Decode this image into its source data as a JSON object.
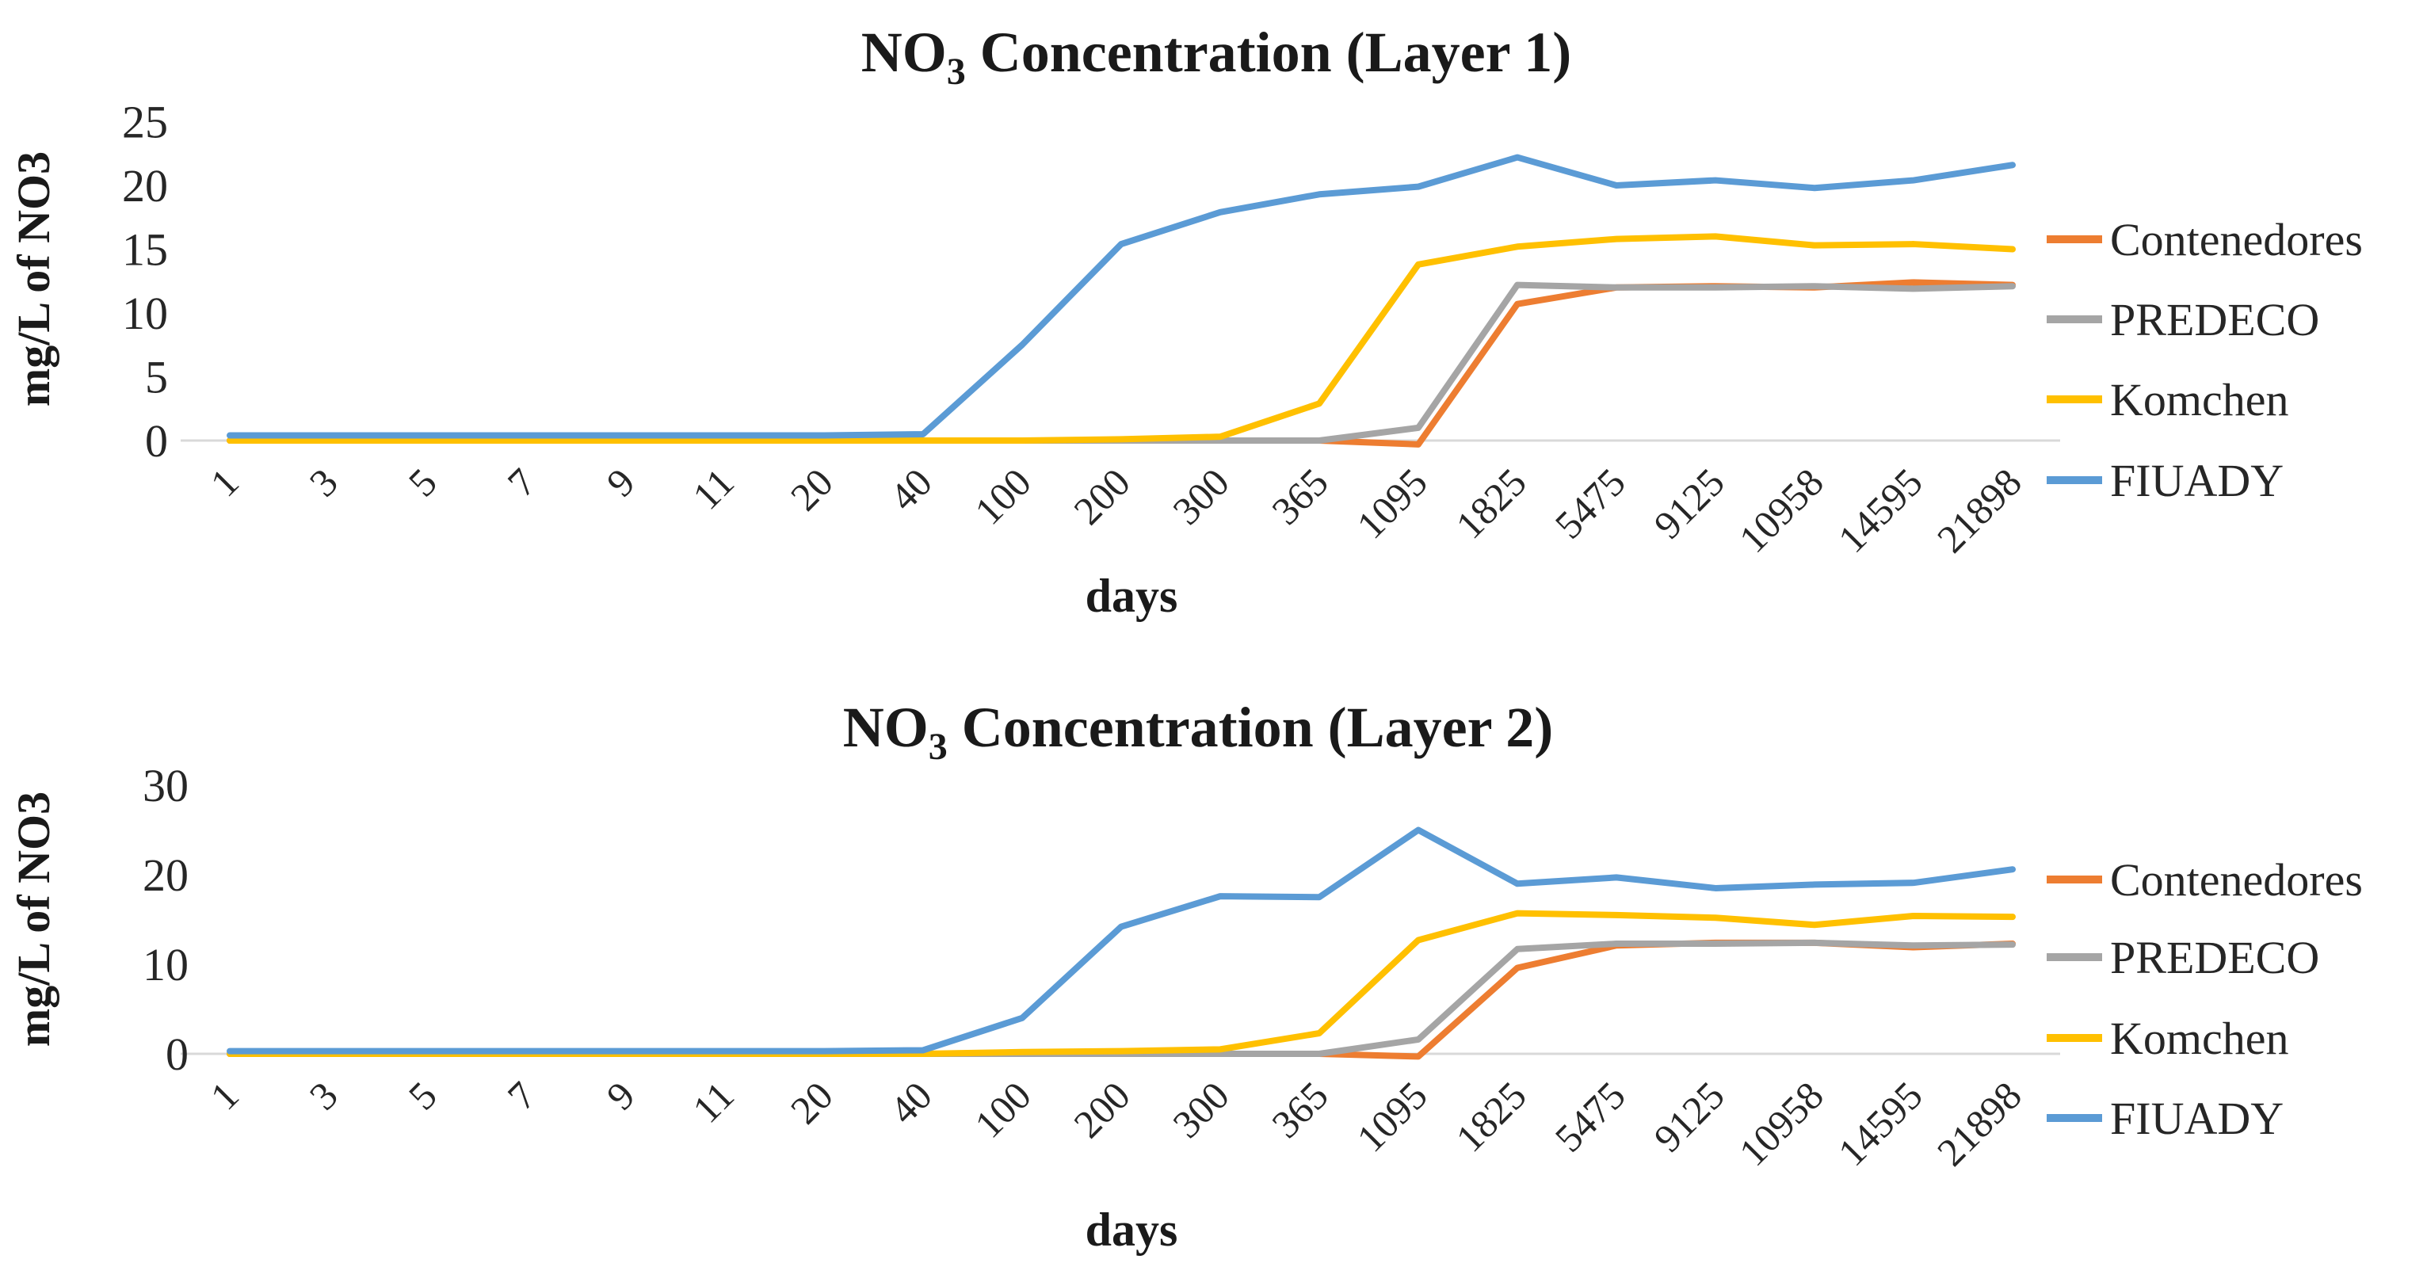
{
  "figure": {
    "background": "#ffffff",
    "series_colors": {
      "Contenedores": "#ED7D31",
      "PREDECO": "#A5A5A5",
      "Komchen": "#FFC000",
      "FIUADY": "#5B9BD5"
    },
    "axis_line_color": "#D9D9D9",
    "text_color": "#262626"
  },
  "legend": {
    "position": "right",
    "entries": [
      "Contenedores",
      "PREDECO",
      "Komchen",
      "FIUADY"
    ]
  },
  "chart_data": [
    {
      "type": "line",
      "title": "NO3 Concentration (Layer 1)",
      "title_parts": {
        "formula": "NO",
        "subscript": "3",
        "rest": " Concentration (Layer 1)"
      },
      "xlabel": "days",
      "ylabel": "mg/L of NO3",
      "ylim": [
        0,
        25
      ],
      "yticks": [
        0,
        5,
        10,
        15,
        20,
        25
      ],
      "grid": "zero-baseline-only",
      "legend_position": "right",
      "categories": [
        "1",
        "3",
        "5",
        "7",
        "9",
        "11",
        "20",
        "40",
        "100",
        "200",
        "300",
        "365",
        "1095",
        "1825",
        "5475",
        "9125",
        "10958",
        "14595",
        "21898"
      ],
      "series": [
        {
          "name": "Contenedores",
          "values": [
            0,
            0,
            0,
            0,
            0,
            0,
            0,
            0,
            0,
            0,
            0,
            0,
            -0.3,
            10.7,
            12.0,
            12.1,
            12.0,
            12.4,
            12.2
          ]
        },
        {
          "name": "PREDECO",
          "values": [
            0,
            0,
            0,
            0,
            0,
            0,
            0,
            0,
            0,
            0,
            0,
            0,
            1.0,
            12.2,
            12.0,
            12.0,
            12.1,
            11.9,
            12.1
          ]
        },
        {
          "name": "Komchen",
          "values": [
            0,
            0,
            0,
            0,
            0,
            0,
            0,
            0,
            0,
            0.1,
            0.3,
            2.9,
            13.8,
            15.2,
            15.8,
            16.0,
            15.3,
            15.4,
            15.0
          ]
        },
        {
          "name": "FIUADY",
          "values": [
            0.4,
            0.4,
            0.4,
            0.4,
            0.4,
            0.4,
            0.4,
            0.5,
            7.5,
            15.4,
            17.9,
            19.3,
            19.9,
            22.2,
            20.0,
            20.4,
            19.8,
            20.4,
            21.6
          ]
        }
      ]
    },
    {
      "type": "line",
      "title": "NO3 Concentration (Layer 2)",
      "title_parts": {
        "formula": "NO",
        "subscript": "3",
        "rest": " Concentration (Layer 2)"
      },
      "xlabel": "days",
      "ylabel": "mg/L of NO3",
      "ylim": [
        0,
        30
      ],
      "yticks": [
        0,
        10,
        20,
        30
      ],
      "grid": "zero-baseline-only",
      "legend_position": "right",
      "categories": [
        "1",
        "3",
        "5",
        "7",
        "9",
        "11",
        "20",
        "40",
        "100",
        "200",
        "300",
        "365",
        "1095",
        "1825",
        "5475",
        "9125",
        "10958",
        "14595",
        "21898"
      ],
      "series": [
        {
          "name": "Contenedores",
          "values": [
            0,
            0,
            0,
            0,
            0,
            0,
            0,
            0,
            0,
            0,
            0,
            0,
            -0.3,
            9.6,
            12.1,
            12.4,
            12.4,
            11.9,
            12.3
          ]
        },
        {
          "name": "PREDECO",
          "values": [
            0,
            0,
            0,
            0,
            0,
            0,
            0,
            0,
            0,
            0,
            0,
            0,
            1.6,
            11.7,
            12.3,
            12.3,
            12.4,
            12.1,
            12.2
          ]
        },
        {
          "name": "Komchen",
          "values": [
            0,
            0,
            0,
            0,
            0,
            0,
            0,
            0,
            0.2,
            0.3,
            0.5,
            2.3,
            12.7,
            15.7,
            15.5,
            15.2,
            14.4,
            15.4,
            15.3
          ]
        },
        {
          "name": "FIUADY",
          "values": [
            0.3,
            0.3,
            0.3,
            0.3,
            0.3,
            0.3,
            0.3,
            0.4,
            4.0,
            14.2,
            17.6,
            17.5,
            25.0,
            19.0,
            19.7,
            18.5,
            18.9,
            19.1,
            20.6
          ]
        }
      ]
    }
  ]
}
